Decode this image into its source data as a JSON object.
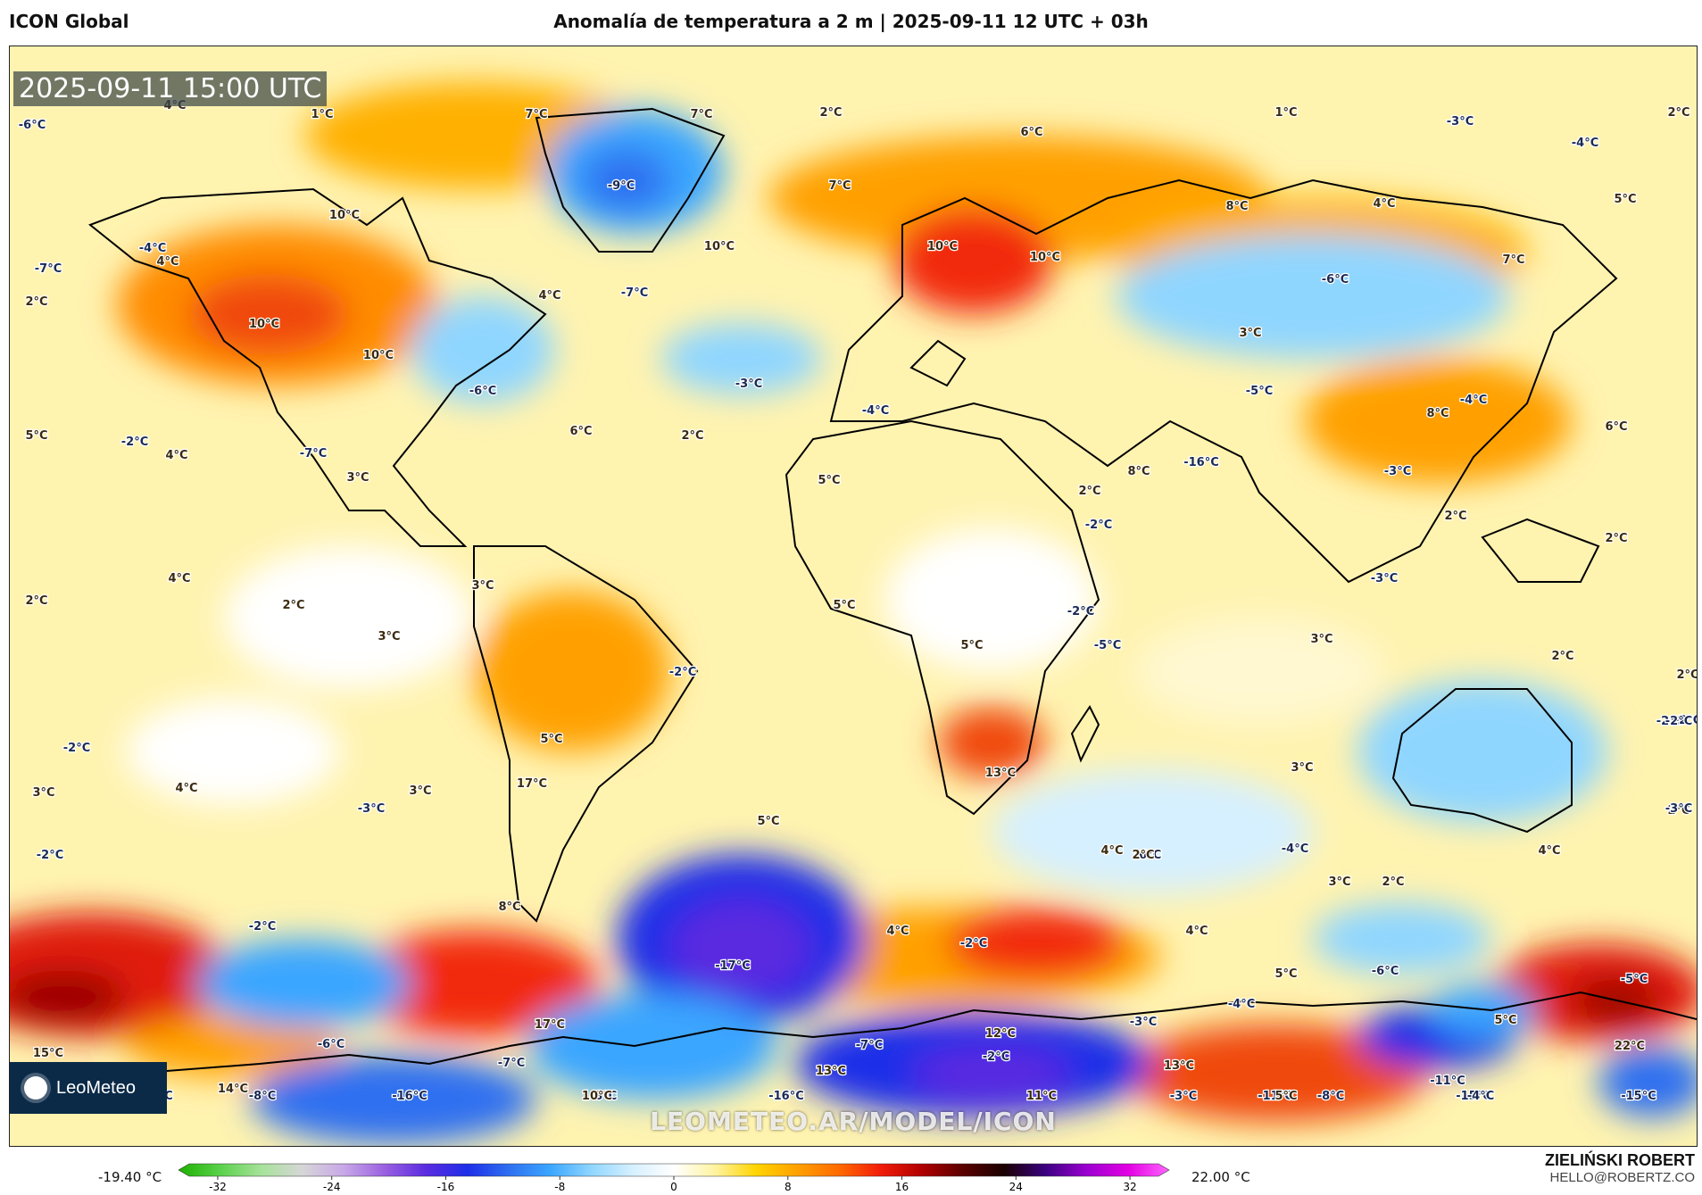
{
  "header": {
    "model_name": "ICON Global",
    "title": "Anomalía de temperatura a 2 m | 2025-09-11 12 UTC + 03h"
  },
  "map": {
    "valid_time": "2025-09-11 15:00 UTC",
    "watermark": "LEOMETEO.AR/MODEL/ICON",
    "logo_text": "LeoMeteo",
    "labels": [
      {
        "text": "4°C"
      },
      {
        "text": "1°C"
      },
      {
        "text": "7°C"
      },
      {
        "text": "7°C"
      },
      {
        "text": "2°C"
      },
      {
        "text": "1°C"
      },
      {
        "text": "-3°C"
      },
      {
        "text": "2°C"
      },
      {
        "text": "-6°C"
      },
      {
        "text": "6°C"
      },
      {
        "text": "-4°C"
      },
      {
        "text": "-9°C"
      },
      {
        "text": "7°C"
      },
      {
        "text": "5°C"
      },
      {
        "text": "4°C"
      },
      {
        "text": "8°C"
      },
      {
        "text": "10°C"
      },
      {
        "text": "-4°C"
      },
      {
        "text": "4°C"
      },
      {
        "text": "10°C"
      },
      {
        "text": "10°C"
      },
      {
        "text": "10°C"
      },
      {
        "text": "-6°C"
      },
      {
        "text": "7°C"
      },
      {
        "text": "-7°C"
      },
      {
        "text": "-7°C"
      },
      {
        "text": "2°C"
      },
      {
        "text": "4°C"
      },
      {
        "text": "3°C"
      },
      {
        "text": "10°C"
      },
      {
        "text": "10°C"
      },
      {
        "text": "-3°C"
      },
      {
        "text": "-6°C"
      },
      {
        "text": "6°C"
      },
      {
        "text": "2°C"
      },
      {
        "text": "-4°C"
      },
      {
        "text": "-5°C"
      },
      {
        "text": "8°C"
      },
      {
        "text": "-4°C"
      },
      {
        "text": "6°C"
      },
      {
        "text": "5°C"
      },
      {
        "text": "-2°C"
      },
      {
        "text": "4°C"
      },
      {
        "text": "-7°C"
      },
      {
        "text": "3°C"
      },
      {
        "text": "5°C"
      },
      {
        "text": "-16°C"
      },
      {
        "text": "8°C"
      },
      {
        "text": "-3°C"
      },
      {
        "text": "2°C"
      },
      {
        "text": "2°C"
      },
      {
        "text": "2°C"
      },
      {
        "text": "2°C"
      },
      {
        "text": "3°C"
      },
      {
        "text": "-2°C"
      },
      {
        "text": "2°C"
      },
      {
        "text": "4°C"
      },
      {
        "text": "5°C"
      },
      {
        "text": "5°C"
      },
      {
        "text": "-2°C"
      },
      {
        "text": "3°C"
      },
      {
        "text": "3°C"
      },
      {
        "text": "2°C"
      },
      {
        "text": "2°C"
      },
      {
        "text": "-2°C"
      },
      {
        "text": "5°C"
      },
      {
        "text": "-2°C"
      },
      {
        "text": "-5°C"
      },
      {
        "text": "-2°C"
      },
      {
        "text": "-2°C"
      },
      {
        "text": "3°C"
      },
      {
        "text": "3°C"
      },
      {
        "text": "4°C"
      },
      {
        "text": "17°C"
      },
      {
        "text": "3°C"
      },
      {
        "text": "-3°C"
      },
      {
        "text": "13°C"
      },
      {
        "text": "2°C"
      },
      {
        "text": "-3°C"
      },
      {
        "text": "-3°C"
      },
      {
        "text": "4°C"
      },
      {
        "text": "-4°C"
      },
      {
        "text": "-4°C"
      },
      {
        "text": "4°C"
      },
      {
        "text": "5°C"
      },
      {
        "text": "-6°C"
      },
      {
        "text": "2°C"
      },
      {
        "text": "3°C"
      },
      {
        "text": "-2°C"
      },
      {
        "text": "2°C"
      },
      {
        "text": "8°C"
      },
      {
        "text": "4°C"
      },
      {
        "text": "4°C"
      },
      {
        "text": "-2°C"
      },
      {
        "text": "-17°C"
      },
      {
        "text": "-2°C"
      },
      {
        "text": "5°C"
      },
      {
        "text": "-6°C"
      },
      {
        "text": "-5°C"
      },
      {
        "text": "15°C"
      },
      {
        "text": "-6°C"
      },
      {
        "text": "17°C"
      },
      {
        "text": "-7°C"
      },
      {
        "text": "12°C"
      },
      {
        "text": "-3°C"
      },
      {
        "text": "-4°C"
      },
      {
        "text": "5°C"
      },
      {
        "text": "22°C"
      },
      {
        "text": "14°C"
      },
      {
        "text": "-7°C"
      },
      {
        "text": "-2°C"
      },
      {
        "text": "13°C"
      },
      {
        "text": "13°C"
      },
      {
        "text": "-11°C"
      },
      {
        "text": "-11°C"
      },
      {
        "text": "-8°C"
      },
      {
        "text": "-16°C"
      },
      {
        "text": "11°C"
      },
      {
        "text": "5°C"
      },
      {
        "text": "-15°C"
      },
      {
        "text": "-12°C"
      },
      {
        "text": "-15°C"
      },
      {
        "text": "-8°C"
      },
      {
        "text": "-16°C"
      },
      {
        "text": "10°C"
      },
      {
        "text": "-3°C"
      },
      {
        "text": "-8°C"
      },
      {
        "text": "-4°C"
      },
      {
        "text": "-15°C"
      },
      {
        "text": "-2°C"
      },
      {
        "text": "-2°C"
      }
    ]
  },
  "legend": {
    "min_label": "-19.40 °C",
    "max_label": "22.00 °C",
    "ticks": [
      "-32",
      "-24",
      "-16",
      "-8",
      "0",
      "8",
      "16",
      "24",
      "32"
    ],
    "tick_values": [
      -32,
      -24,
      -16,
      -8,
      0,
      8,
      16,
      24,
      32
    ],
    "range": [
      -34,
      34
    ],
    "colors": [
      "#1db000",
      "#5ad14a",
      "#a6e29a",
      "#d6d6d6",
      "#c8a8e8",
      "#9a60e0",
      "#5a2be0",
      "#1e2ee8",
      "#2f6ff0",
      "#3aa6ff",
      "#8fd6ff",
      "#d6f0ff",
      "#ffffff",
      "#fff3a0",
      "#ffd400",
      "#ffa000",
      "#ff6a00",
      "#f21d0a",
      "#b10000",
      "#5a0000",
      "#1a0000",
      "#3a0080",
      "#9a00d0",
      "#e200e2",
      "#ff66ff"
    ]
  },
  "author": {
    "name": "ZIELIŃSKI ROBERT",
    "email": "HELLO@ROBERTZ.CO"
  }
}
